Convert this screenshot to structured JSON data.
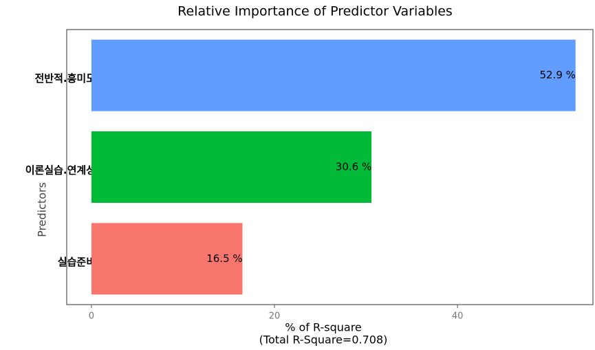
{
  "chart_data": {
    "type": "barh",
    "title": "Relative Importance of Predictor Variables",
    "categories": [
      "전반적.흥미도",
      "이론실습.연계성",
      "실습준비"
    ],
    "values": [
      52.9,
      30.6,
      16.5
    ],
    "value_labels": [
      "52.9 %",
      "30.6 %",
      "16.5 %"
    ],
    "colors": [
      "#619CFF",
      "#00BA38",
      "#F8766D"
    ],
    "xlim": [
      -2.7,
      54.8
    ],
    "xticks": [
      0,
      20,
      40
    ],
    "x_label": [
      "% of R-square",
      "(Total R-Square=0.708)"
    ],
    "y_label": "Predictors"
  }
}
